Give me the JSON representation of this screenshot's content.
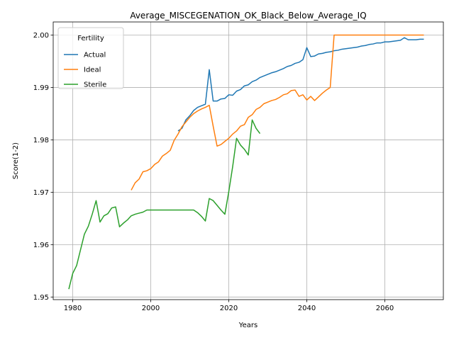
{
  "chart_data": {
    "type": "line",
    "title": "Average_MISCEGENATION_OK_Black_Below_Average_IQ",
    "xlabel": "Years",
    "ylabel": "Score(1-2)",
    "xlim": [
      1975,
      2075
    ],
    "ylim": [
      1.9495,
      2.0025
    ],
    "xticks": [
      1980,
      2000,
      2020,
      2040,
      2060
    ],
    "yticks": [
      1.95,
      1.96,
      1.97,
      1.98,
      1.99,
      2.0
    ],
    "ytick_labels": [
      "1.95",
      "1.96",
      "1.97",
      "1.98",
      "1.99",
      "2.00"
    ],
    "grid": true,
    "legend": {
      "title": "Fertility",
      "position": "top-left"
    },
    "series": [
      {
        "name": "Actual",
        "color": "#1f77b4",
        "points": [
          [
            2007,
            1.9817
          ],
          [
            2008,
            1.9822
          ],
          [
            2009,
            1.9838
          ],
          [
            2010,
            1.9846
          ],
          [
            2011,
            1.9856
          ],
          [
            2012,
            1.9862
          ],
          [
            2013,
            1.9865
          ],
          [
            2014,
            1.9868
          ],
          [
            2015,
            1.9934
          ],
          [
            2016,
            1.9874
          ],
          [
            2017,
            1.9874
          ],
          [
            2018,
            1.9878
          ],
          [
            2019,
            1.9879
          ],
          [
            2020,
            1.9886
          ],
          [
            2021,
            1.9885
          ],
          [
            2022,
            1.9893
          ],
          [
            2023,
            1.9896
          ],
          [
            2024,
            1.9903
          ],
          [
            2025,
            1.9905
          ],
          [
            2026,
            1.9911
          ],
          [
            2027,
            1.9914
          ],
          [
            2028,
            1.9919
          ],
          [
            2029,
            1.9922
          ],
          [
            2030,
            1.9925
          ],
          [
            2031,
            1.9928
          ],
          [
            2032,
            1.993
          ],
          [
            2033,
            1.9933
          ],
          [
            2034,
            1.9936
          ],
          [
            2035,
            1.994
          ],
          [
            2036,
            1.9942
          ],
          [
            2037,
            1.9946
          ],
          [
            2038,
            1.9948
          ],
          [
            2039,
            1.9953
          ],
          [
            2040,
            1.9976
          ],
          [
            2041,
            1.9959
          ],
          [
            2042,
            1.996
          ],
          [
            2043,
            1.9964
          ],
          [
            2044,
            1.9965
          ],
          [
            2045,
            1.9967
          ],
          [
            2046,
            1.9968
          ],
          [
            2047,
            1.997
          ],
          [
            2048,
            1.9971
          ],
          [
            2049,
            1.9973
          ],
          [
            2050,
            1.9974
          ],
          [
            2051,
            1.9975
          ],
          [
            2052,
            1.9976
          ],
          [
            2053,
            1.9977
          ],
          [
            2054,
            1.9979
          ],
          [
            2055,
            1.998
          ],
          [
            2056,
            1.9982
          ],
          [
            2057,
            1.9983
          ],
          [
            2058,
            1.9985
          ],
          [
            2059,
            1.9985
          ],
          [
            2060,
            1.9987
          ],
          [
            2061,
            1.9987
          ],
          [
            2062,
            1.9988
          ],
          [
            2063,
            1.9989
          ],
          [
            2064,
            1.999
          ],
          [
            2065,
            1.9995
          ],
          [
            2066,
            1.9991
          ],
          [
            2067,
            1.9991
          ],
          [
            2068,
            1.9991
          ],
          [
            2069,
            1.9992
          ],
          [
            2070,
            1.9992
          ]
        ]
      },
      {
        "name": "Ideal",
        "color": "#ff7f0e",
        "points": [
          [
            1995,
            1.9704
          ],
          [
            1996,
            1.9718
          ],
          [
            1997,
            1.9725
          ],
          [
            1998,
            1.9739
          ],
          [
            1999,
            1.9741
          ],
          [
            2000,
            1.9745
          ],
          [
            2001,
            1.9753
          ],
          [
            2002,
            1.9758
          ],
          [
            2003,
            1.9769
          ],
          [
            2004,
            1.9774
          ],
          [
            2005,
            1.978
          ],
          [
            2006,
            1.9799
          ],
          [
            2007,
            1.9811
          ],
          [
            2008,
            1.9825
          ],
          [
            2009,
            1.9834
          ],
          [
            2010,
            1.9843
          ],
          [
            2011,
            1.985
          ],
          [
            2012,
            1.9855
          ],
          [
            2013,
            1.9859
          ],
          [
            2014,
            1.9862
          ],
          [
            2015,
            1.9866
          ],
          [
            2016,
            1.9826
          ],
          [
            2017,
            1.9788
          ],
          [
            2018,
            1.9791
          ],
          [
            2019,
            1.9797
          ],
          [
            2020,
            1.9803
          ],
          [
            2021,
            1.9811
          ],
          [
            2022,
            1.9817
          ],
          [
            2023,
            1.9826
          ],
          [
            2024,
            1.9829
          ],
          [
            2025,
            1.9843
          ],
          [
            2026,
            1.9848
          ],
          [
            2027,
            1.9858
          ],
          [
            2028,
            1.9862
          ],
          [
            2029,
            1.9869
          ],
          [
            2030,
            1.9872
          ],
          [
            2031,
            1.9875
          ],
          [
            2032,
            1.9877
          ],
          [
            2033,
            1.9881
          ],
          [
            2034,
            1.9886
          ],
          [
            2035,
            1.9888
          ],
          [
            2036,
            1.9894
          ],
          [
            2037,
            1.9895
          ],
          [
            2038,
            1.9883
          ],
          [
            2039,
            1.9886
          ],
          [
            2040,
            1.9876
          ],
          [
            2041,
            1.9883
          ],
          [
            2042,
            1.9875
          ],
          [
            2043,
            1.9882
          ],
          [
            2044,
            1.9889
          ],
          [
            2045,
            1.9895
          ],
          [
            2046,
            1.99
          ],
          [
            2047,
            2.0
          ],
          [
            2048,
            2.0
          ],
          [
            2050,
            2.0
          ],
          [
            2055,
            2.0
          ],
          [
            2060,
            2.0
          ],
          [
            2065,
            2.0
          ],
          [
            2070,
            2.0
          ]
        ]
      },
      {
        "name": "Sterile",
        "color": "#2ca02c",
        "points": [
          [
            1979,
            1.9515
          ],
          [
            1980,
            1.9545
          ],
          [
            1981,
            1.956
          ],
          [
            1982,
            1.959
          ],
          [
            1983,
            1.962
          ],
          [
            1984,
            1.9635
          ],
          [
            1985,
            1.9658
          ],
          [
            1986,
            1.9684
          ],
          [
            1987,
            1.9643
          ],
          [
            1988,
            1.9655
          ],
          [
            1989,
            1.9659
          ],
          [
            1990,
            1.967
          ],
          [
            1991,
            1.9672
          ],
          [
            1992,
            1.9634
          ],
          [
            1993,
            1.9641
          ],
          [
            1994,
            1.9647
          ],
          [
            1995,
            1.9655
          ],
          [
            1996,
            1.9658
          ],
          [
            1997,
            1.966
          ],
          [
            1998,
            1.9662
          ],
          [
            1999,
            1.9666
          ],
          [
            2000,
            1.9666
          ],
          [
            2005,
            1.9666
          ],
          [
            2010,
            1.9666
          ],
          [
            2011,
            1.9666
          ],
          [
            2012,
            1.9661
          ],
          [
            2013,
            1.9654
          ],
          [
            2014,
            1.9645
          ],
          [
            2015,
            1.9688
          ],
          [
            2016,
            1.9684
          ],
          [
            2017,
            1.9675
          ],
          [
            2018,
            1.9666
          ],
          [
            2019,
            1.9658
          ],
          [
            2020,
            1.9701
          ],
          [
            2021,
            1.9749
          ],
          [
            2022,
            1.9803
          ],
          [
            2023,
            1.979
          ],
          [
            2024,
            1.9782
          ],
          [
            2025,
            1.9771
          ],
          [
            2026,
            1.9838
          ],
          [
            2027,
            1.9822
          ],
          [
            2028,
            1.9812
          ]
        ]
      }
    ]
  }
}
